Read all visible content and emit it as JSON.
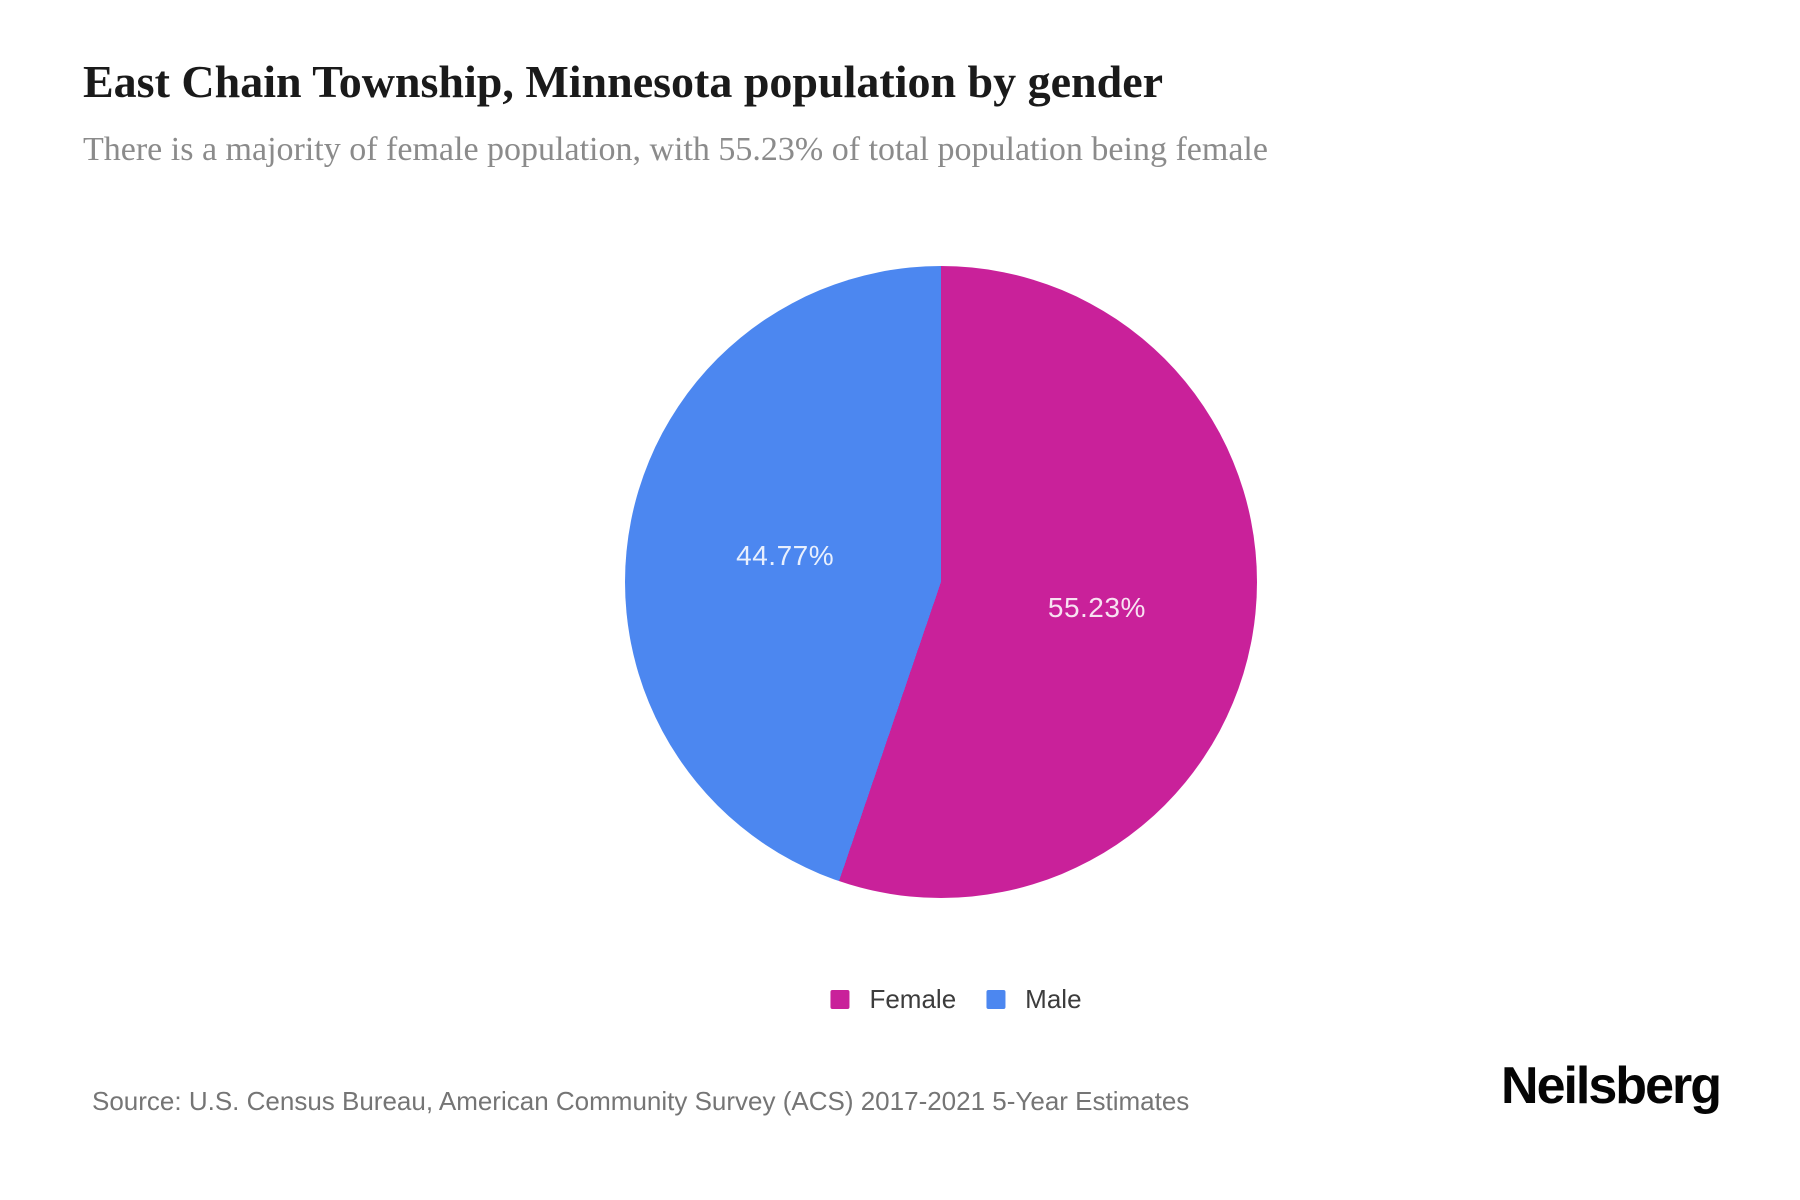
{
  "header": {
    "title": "East Chain Township, Minnesota population by gender",
    "subtitle": "There is a majority of female population, with 55.23% of total population being female"
  },
  "chart_data": {
    "type": "pie",
    "title": "East Chain Township, Minnesota population by gender",
    "start_angle_deg": 0,
    "direction": "clockwise",
    "legend_position": "bottom",
    "slice_label_color": "rgba(255,255,255,0.87)",
    "slices": [
      {
        "label": "Female",
        "value": 55.23,
        "display": "55.23%",
        "color": "#c9219a"
      },
      {
        "label": "Male",
        "value": 44.77,
        "display": "44.77%",
        "color": "#4c87f0"
      }
    ]
  },
  "source": {
    "text": "Source: U.S. Census Bureau, American Community Survey (ACS) 2017-2021 5-Year Estimates"
  },
  "brand": {
    "name": "Neilsberg"
  }
}
